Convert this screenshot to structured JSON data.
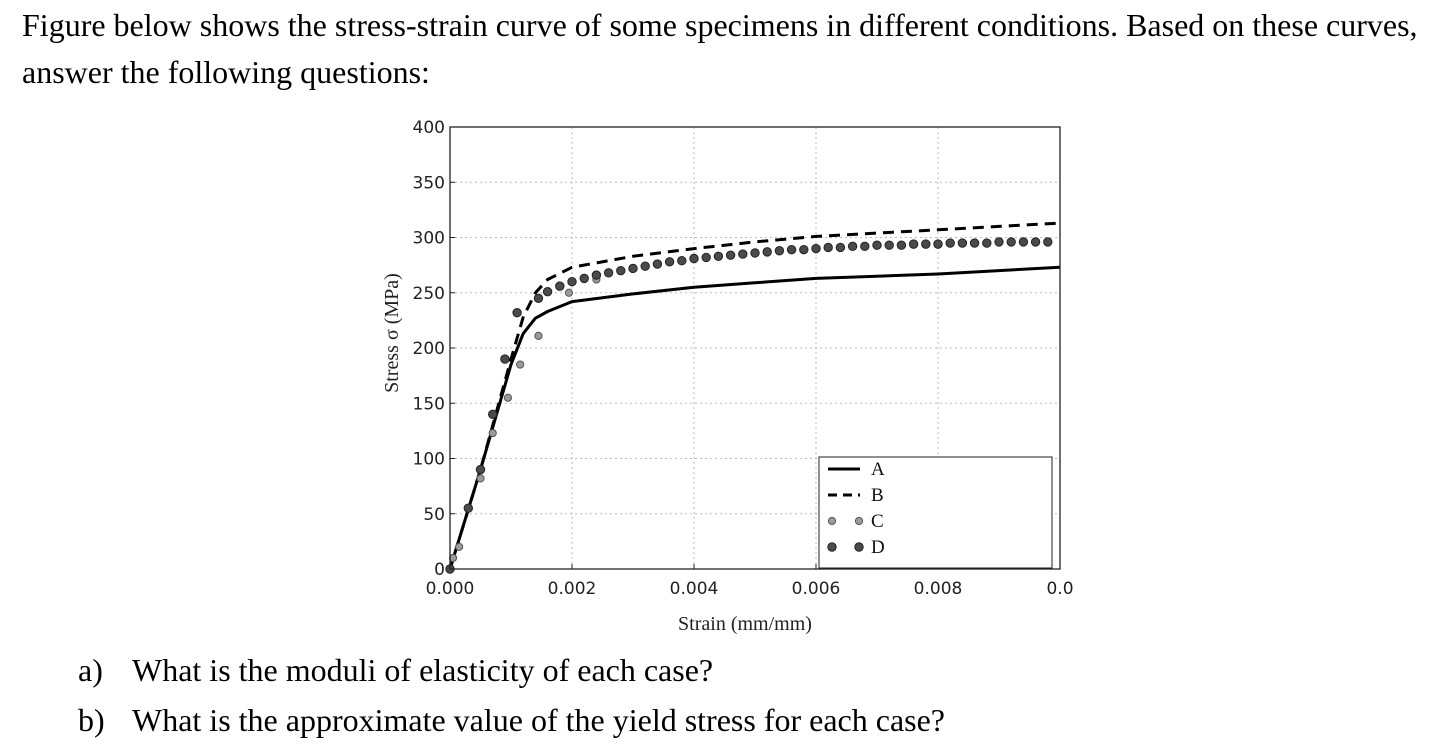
{
  "prompt": "Figure below shows the stress-strain curve of some specimens in different conditions. Based on these curves, answer the following questions:",
  "questions": [
    {
      "label": "a)",
      "text": "What is the moduli of elasticity of each case?"
    },
    {
      "label": "b)",
      "text": "What is the approximate value of the yield stress for each case?"
    }
  ],
  "chart_data": {
    "type": "line",
    "title": "",
    "xlabel": "Strain (mm/mm)",
    "ylabel": "Stress σ (MPa)",
    "xlim": [
      0,
      0.01
    ],
    "ylim": [
      0,
      400
    ],
    "x_ticks": [
      "0.000",
      "0.002",
      "0.004",
      "0.006",
      "0.008",
      "0.0"
    ],
    "y_ticks": [
      "0",
      "50",
      "100",
      "150",
      "200",
      "250",
      "300",
      "350",
      "400"
    ],
    "grid": true,
    "legend_position": "lower-right",
    "series": [
      {
        "name": "A",
        "style": "solid-line",
        "color": "#000000",
        "x": [
          0,
          0.0005,
          0.001,
          0.0012,
          0.0014,
          0.0016,
          0.002,
          0.003,
          0.004,
          0.005,
          0.006,
          0.007,
          0.008,
          0.009,
          0.01
        ],
        "y": [
          0,
          90,
          185,
          213,
          227,
          233,
          242,
          249,
          255,
          259,
          263,
          265,
          267,
          270,
          273
        ]
      },
      {
        "name": "B",
        "style": "dashed-line",
        "color": "#000000",
        "x": [
          0,
          0.0005,
          0.001,
          0.0012,
          0.0014,
          0.0016,
          0.002,
          0.003,
          0.004,
          0.005,
          0.006,
          0.007,
          0.008,
          0.009,
          0.01
        ],
        "y": [
          0,
          90,
          190,
          228,
          250,
          262,
          273,
          283,
          290,
          296,
          301,
          304,
          307,
          310,
          313
        ]
      },
      {
        "name": "C",
        "style": "grey-circles",
        "color": "#9a9a9a",
        "x": [
          5e-05,
          0.00015,
          0.0003,
          0.0005,
          0.0007,
          0.00095,
          0.00115,
          0.00145,
          0.00195,
          0.0024
        ],
        "y": [
          10,
          20,
          55,
          82,
          123,
          155,
          185,
          211,
          250,
          262
        ]
      },
      {
        "name": "D",
        "style": "dark-circles",
        "color": "#4a4a4a",
        "x": [
          0,
          0.0003,
          0.0005,
          0.0007,
          0.0009,
          0.0011,
          0.00145,
          0.0016,
          0.0018,
          0.002,
          0.0022,
          0.0024,
          0.0026,
          0.0028,
          0.003,
          0.0032,
          0.0034,
          0.0036,
          0.0038,
          0.004,
          0.0042,
          0.0044,
          0.0046,
          0.0048,
          0.005,
          0.0052,
          0.0054,
          0.0056,
          0.0058,
          0.006,
          0.0062,
          0.0064,
          0.0066,
          0.0068,
          0.007,
          0.0072,
          0.0074,
          0.0076,
          0.0078,
          0.008,
          0.0082,
          0.0084,
          0.0086,
          0.0088,
          0.009,
          0.0092,
          0.0094,
          0.0096,
          0.0098
        ],
        "y": [
          0,
          55,
          90,
          140,
          190,
          232,
          245,
          251,
          256,
          260,
          263,
          266,
          268,
          270,
          272,
          274,
          276,
          278,
          279,
          281,
          282,
          283,
          284,
          285,
          286,
          287,
          288,
          289,
          289,
          290,
          291,
          291,
          292,
          292,
          293,
          293,
          293,
          294,
          294,
          294,
          295,
          295,
          295,
          295,
          296,
          296,
          296,
          296,
          296
        ]
      }
    ]
  }
}
